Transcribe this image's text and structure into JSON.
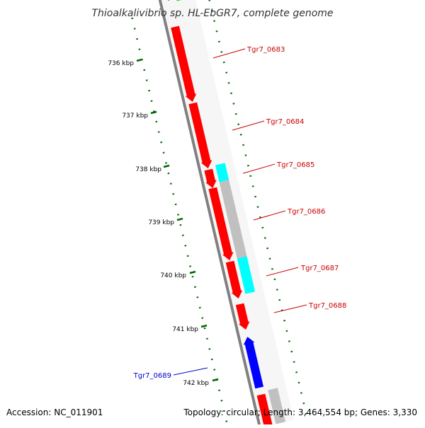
{
  "title": "Thioalkalivibrio sp. HL-EbGR7, complete genome",
  "footer": {
    "accession": "Accession: NC_011901",
    "summary": "Topology: circular; Length: 3,464,554 bp; Genes: 3,330"
  },
  "scale_labels": [
    "736 kbp",
    "737 kbp",
    "738 kbp",
    "739 kbp",
    "740 kbp",
    "741 kbp",
    "742 kbp"
  ],
  "genes": [
    {
      "id": "Tgr7_0683",
      "label": "Tgr7_0683",
      "color": "#cc0000"
    },
    {
      "id": "Tgr7_0684",
      "label": "Tgr7_0684",
      "color": "#cc0000"
    },
    {
      "id": "Tgr7_0685",
      "label": "Tgr7_0685",
      "color": "#cc0000"
    },
    {
      "id": "Tgr7_0686",
      "label": "Tgr7_0686",
      "color": "#cc0000"
    },
    {
      "id": "Tgr7_0687",
      "label": "Tgr7_0687",
      "color": "#cc0000"
    },
    {
      "id": "Tgr7_0688",
      "label": "Tgr7_0688",
      "color": "#cc0000"
    },
    {
      "id": "Tgr7_0689",
      "label": "Tgr7_0689",
      "color": "#0000cc"
    }
  ],
  "colors": {
    "forward_cds": "#ff0000",
    "reverse_cds": "#0000ff",
    "track_cyan": "#00ffff",
    "track_gray": "#c0c0c0",
    "track_green": "#33cc33",
    "backbone": "#808080",
    "tick_green": "#006600"
  }
}
